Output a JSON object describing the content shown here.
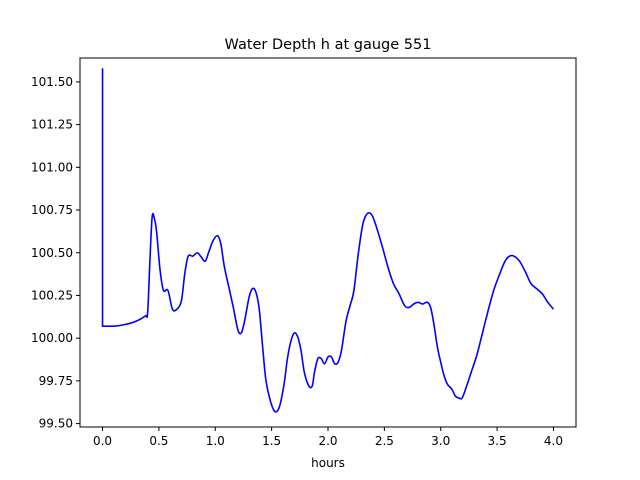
{
  "chart_data": {
    "type": "line",
    "title": "Water Depth h at gauge 551",
    "xlabel": "hours",
    "ylabel": "",
    "xlim": [
      -0.2,
      4.2
    ],
    "ylim": [
      99.48,
      101.64
    ],
    "xticks": [
      0.0,
      0.5,
      1.0,
      1.5,
      2.0,
      2.5,
      3.0,
      3.5,
      4.0
    ],
    "xtick_labels": [
      "0.0",
      "0.5",
      "1.0",
      "1.5",
      "2.0",
      "2.5",
      "3.0",
      "3.5",
      "4.0"
    ],
    "yticks": [
      99.5,
      99.75,
      100.0,
      100.25,
      100.5,
      100.75,
      101.0,
      101.25,
      101.5
    ],
    "ytick_labels": [
      "99.50",
      "99.75",
      "100.00",
      "100.25",
      "100.50",
      "100.75",
      "101.00",
      "101.25",
      "101.50"
    ],
    "grid": false,
    "series": [
      {
        "color": "#0000ff",
        "points": [
          [
            0.0,
            101.58
          ],
          [
            0.0,
            100.07
          ],
          [
            0.1,
            100.07
          ],
          [
            0.2,
            100.08
          ],
          [
            0.3,
            100.1
          ],
          [
            0.38,
            100.13
          ],
          [
            0.4,
            100.15
          ],
          [
            0.42,
            100.45
          ],
          [
            0.44,
            100.71
          ],
          [
            0.46,
            100.7
          ],
          [
            0.48,
            100.62
          ],
          [
            0.51,
            100.4
          ],
          [
            0.54,
            100.28
          ],
          [
            0.58,
            100.28
          ],
          [
            0.62,
            100.17
          ],
          [
            0.66,
            100.17
          ],
          [
            0.7,
            100.22
          ],
          [
            0.73,
            100.38
          ],
          [
            0.76,
            100.48
          ],
          [
            0.8,
            100.48
          ],
          [
            0.84,
            100.5
          ],
          [
            0.87,
            100.48
          ],
          [
            0.91,
            100.45
          ],
          [
            0.94,
            100.5
          ],
          [
            0.98,
            100.57
          ],
          [
            1.02,
            100.6
          ],
          [
            1.05,
            100.55
          ],
          [
            1.08,
            100.42
          ],
          [
            1.12,
            100.3
          ],
          [
            1.16,
            100.18
          ],
          [
            1.2,
            100.05
          ],
          [
            1.23,
            100.03
          ],
          [
            1.26,
            100.1
          ],
          [
            1.3,
            100.24
          ],
          [
            1.33,
            100.29
          ],
          [
            1.36,
            100.27
          ],
          [
            1.39,
            100.17
          ],
          [
            1.42,
            99.95
          ],
          [
            1.45,
            99.75
          ],
          [
            1.49,
            99.63
          ],
          [
            1.53,
            99.57
          ],
          [
            1.57,
            99.6
          ],
          [
            1.61,
            99.73
          ],
          [
            1.64,
            99.88
          ],
          [
            1.67,
            99.98
          ],
          [
            1.7,
            100.03
          ],
          [
            1.73,
            100.01
          ],
          [
            1.76,
            99.93
          ],
          [
            1.79,
            99.8
          ],
          [
            1.83,
            99.72
          ],
          [
            1.86,
            99.72
          ],
          [
            1.88,
            99.8
          ],
          [
            1.91,
            99.88
          ],
          [
            1.94,
            99.88
          ],
          [
            1.97,
            99.85
          ],
          [
            2.0,
            99.89
          ],
          [
            2.03,
            99.89
          ],
          [
            2.06,
            99.85
          ],
          [
            2.09,
            99.86
          ],
          [
            2.12,
            99.93
          ],
          [
            2.16,
            100.1
          ],
          [
            2.2,
            100.2
          ],
          [
            2.23,
            100.28
          ],
          [
            2.27,
            100.5
          ],
          [
            2.31,
            100.67
          ],
          [
            2.35,
            100.73
          ],
          [
            2.39,
            100.72
          ],
          [
            2.43,
            100.65
          ],
          [
            2.48,
            100.54
          ],
          [
            2.53,
            100.42
          ],
          [
            2.58,
            100.32
          ],
          [
            2.63,
            100.26
          ],
          [
            2.68,
            100.19
          ],
          [
            2.72,
            100.18
          ],
          [
            2.76,
            100.2
          ],
          [
            2.8,
            100.21
          ],
          [
            2.84,
            100.2
          ],
          [
            2.88,
            100.21
          ],
          [
            2.91,
            100.18
          ],
          [
            2.94,
            100.08
          ],
          [
            2.97,
            99.95
          ],
          [
            3.0,
            99.86
          ],
          [
            3.03,
            99.78
          ],
          [
            3.06,
            99.73
          ],
          [
            3.1,
            99.7
          ],
          [
            3.13,
            99.66
          ],
          [
            3.16,
            99.65
          ],
          [
            3.19,
            99.65
          ],
          [
            3.23,
            99.72
          ],
          [
            3.27,
            99.8
          ],
          [
            3.32,
            99.9
          ],
          [
            3.37,
            100.03
          ],
          [
            3.42,
            100.16
          ],
          [
            3.47,
            100.28
          ],
          [
            3.52,
            100.37
          ],
          [
            3.57,
            100.45
          ],
          [
            3.61,
            100.48
          ],
          [
            3.65,
            100.48
          ],
          [
            3.7,
            100.45
          ],
          [
            3.75,
            100.39
          ],
          [
            3.8,
            100.32
          ],
          [
            3.85,
            100.29
          ],
          [
            3.9,
            100.26
          ],
          [
            3.95,
            100.21
          ],
          [
            4.0,
            100.17
          ]
        ]
      }
    ]
  }
}
